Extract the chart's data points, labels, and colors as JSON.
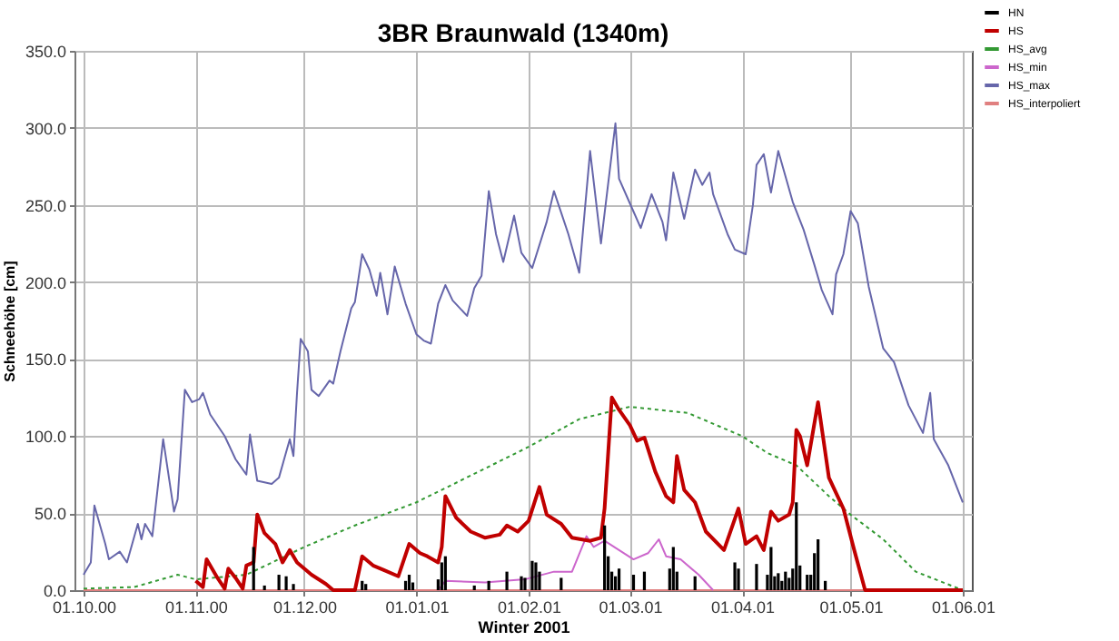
{
  "chart_data": {
    "type": "line",
    "title": "3BR Braunwald (1340m)",
    "xlabel": "Winter 2001",
    "ylabel": "Schneehöhe [cm]",
    "xlim": [
      "2000-10-01",
      "2001-06-01"
    ],
    "xticks": [
      {
        "value": "2000-10-01",
        "label": "01.10.00"
      },
      {
        "value": "2000-11-01",
        "label": "01.11.00"
      },
      {
        "value": "2000-12-01",
        "label": "01.12.00"
      },
      {
        "value": "2001-01-01",
        "label": "01.01.01"
      },
      {
        "value": "2001-02-01",
        "label": "01.02.01"
      },
      {
        "value": "2001-03-01",
        "label": "01.03.01"
      },
      {
        "value": "2001-04-01",
        "label": "01.04.01"
      },
      {
        "value": "2001-05-01",
        "label": "01.05.01"
      },
      {
        "value": "2001-06-01",
        "label": "01.06.01"
      }
    ],
    "ylim": [
      0,
      350
    ],
    "yticks": [
      {
        "value": 0,
        "label": "0.0"
      },
      {
        "value": 50,
        "label": "50.0"
      },
      {
        "value": 100,
        "label": "100.0"
      },
      {
        "value": 150,
        "label": "150.0"
      },
      {
        "value": 200,
        "label": "200.0"
      },
      {
        "value": 250,
        "label": "250.0"
      },
      {
        "value": 300,
        "label": "300.0"
      },
      {
        "value": 350,
        "label": "350.0"
      }
    ],
    "grid": true,
    "legend": "top right",
    "series": [
      {
        "name": "HN",
        "type": "bar",
        "color": "#000000",
        "x": [
          "2000-11-17",
          "2000-11-20",
          "2000-11-24",
          "2000-11-26",
          "2000-11-28",
          "2000-12-17",
          "2000-12-18",
          "2000-12-29",
          "2000-12-30",
          "2000-12-31",
          "2001-01-07",
          "2001-01-08",
          "2001-01-09",
          "2001-01-17",
          "2001-01-21",
          "2001-01-26",
          "2001-01-30",
          "2001-01-31",
          "2001-02-02",
          "2001-02-03",
          "2001-02-04",
          "2001-02-10",
          "2001-02-22",
          "2001-02-23",
          "2001-02-24",
          "2001-02-25",
          "2001-02-26",
          "2001-03-02",
          "2001-03-05",
          "2001-03-12",
          "2001-03-13",
          "2001-03-14",
          "2001-03-19",
          "2001-03-30",
          "2001-03-31",
          "2001-04-05",
          "2001-04-08",
          "2001-04-09",
          "2001-04-10",
          "2001-04-11",
          "2001-04-12",
          "2001-04-13",
          "2001-04-14",
          "2001-04-15",
          "2001-04-16",
          "2001-04-17",
          "2001-04-19",
          "2001-04-20",
          "2001-04-21",
          "2001-04-22",
          "2001-04-24"
        ],
        "values": [
          28,
          3,
          10,
          9,
          4,
          6,
          4,
          6,
          10,
          5,
          7,
          18,
          22,
          3,
          6,
          12,
          9,
          8,
          19,
          18,
          12,
          8,
          42,
          22,
          12,
          9,
          14,
          10,
          12,
          14,
          28,
          12,
          9,
          18,
          14,
          17,
          10,
          28,
          9,
          11,
          6,
          12,
          8,
          14,
          57,
          16,
          10,
          10,
          24,
          33,
          6
        ]
      },
      {
        "name": "HS",
        "color": "#c00000",
        "x": [
          "2000-11-01",
          "2000-11-03",
          "2000-11-04",
          "2000-11-07",
          "2000-11-09",
          "2000-11-10",
          "2000-11-12",
          "2000-11-14",
          "2000-11-15",
          "2000-11-17",
          "2000-11-18",
          "2000-11-20",
          "2000-11-23",
          "2000-11-25",
          "2000-11-27",
          "2000-11-29",
          "2000-12-03",
          "2000-12-07",
          "2000-12-09",
          "2000-12-15",
          "2000-12-17",
          "2000-12-20",
          "2000-12-23",
          "2000-12-27",
          "2000-12-30",
          "2001-01-02",
          "2001-01-04",
          "2001-01-07",
          "2001-01-08",
          "2001-01-09",
          "2001-01-12",
          "2001-01-16",
          "2001-01-20",
          "2001-01-24",
          "2001-01-26",
          "2001-01-29",
          "2001-02-01",
          "2001-02-04",
          "2001-02-06",
          "2001-02-10",
          "2001-02-13",
          "2001-02-18",
          "2001-02-21",
          "2001-02-22",
          "2001-02-24",
          "2001-02-26",
          "2001-03-01",
          "2001-03-03",
          "2001-03-05",
          "2001-03-08",
          "2001-03-11",
          "2001-03-13",
          "2001-03-14",
          "2001-03-16",
          "2001-03-19",
          "2001-03-22",
          "2001-03-27",
          "2001-03-31",
          "2001-04-02",
          "2001-04-05",
          "2001-04-07",
          "2001-04-09",
          "2001-04-11",
          "2001-04-14",
          "2001-04-15",
          "2001-04-16",
          "2001-04-17",
          "2001-04-19",
          "2001-04-22",
          "2001-04-25",
          "2001-04-29",
          "2001-05-02",
          "2001-05-05",
          "2001-06-01"
        ],
        "values": [
          6,
          2,
          20,
          8,
          1,
          14,
          8,
          1,
          16,
          18,
          49,
          37,
          30,
          18,
          26,
          18,
          10,
          4,
          0,
          0,
          22,
          16,
          13,
          9,
          30,
          24,
          22,
          18,
          28,
          61,
          47,
          38,
          34,
          36,
          42,
          38,
          45,
          67,
          49,
          43,
          34,
          32,
          34,
          53,
          125,
          117,
          107,
          97,
          99,
          77,
          61,
          57,
          87,
          65,
          57,
          38,
          26,
          53,
          30,
          35,
          26,
          51,
          45,
          49,
          57,
          104,
          100,
          81,
          122,
          73,
          53,
          26,
          0,
          0
        ]
      },
      {
        "name": "HS_avg",
        "color": "#339933",
        "line_style": "dotted",
        "x": [
          "2000-10-01",
          "2000-10-15",
          "2000-10-27",
          "2000-11-01",
          "2000-11-15",
          "2000-12-01",
          "2000-12-15",
          "2001-01-01",
          "2001-01-20",
          "2001-02-01",
          "2001-02-15",
          "2001-03-01",
          "2001-03-17",
          "2001-04-01",
          "2001-04-08",
          "2001-04-16",
          "2001-04-25",
          "2001-05-01",
          "2001-05-10",
          "2001-05-19",
          "2001-06-01"
        ],
        "values": [
          1,
          2,
          10,
          7,
          10,
          28,
          42,
          57,
          79,
          93,
          111,
          119,
          115,
          100,
          89,
          81,
          61,
          49,
          33,
          12,
          0
        ]
      },
      {
        "name": "HS_min",
        "color": "#cc66cc",
        "x": [
          "2001-01-07",
          "2001-01-09",
          "2001-01-20",
          "2001-01-31",
          "2001-02-08",
          "2001-02-13",
          "2001-02-17",
          "2001-02-19",
          "2001-02-22",
          "2001-02-26",
          "2001-03-02",
          "2001-03-06",
          "2001-03-09",
          "2001-03-11",
          "2001-03-15",
          "2001-03-20",
          "2001-03-24"
        ],
        "values": [
          0,
          6,
          5,
          7,
          12,
          12,
          35,
          28,
          32,
          26,
          20,
          24,
          33,
          22,
          20,
          10,
          0
        ]
      },
      {
        "name": "HS_max",
        "color": "#6666aa",
        "x": [
          "2000-10-01",
          "2000-10-03",
          "2000-10-04",
          "2000-10-07",
          "2000-10-08",
          "2000-10-11",
          "2000-10-13",
          "2000-10-16",
          "2000-10-17",
          "2000-10-18",
          "2000-10-20",
          "2000-10-23",
          "2000-10-26",
          "2000-10-27",
          "2000-10-29",
          "2000-10-31",
          "2000-11-02",
          "2000-11-03",
          "2000-11-05",
          "2000-11-09",
          "2000-11-12",
          "2000-11-15",
          "2000-11-16",
          "2000-11-18",
          "2000-11-22",
          "2000-11-24",
          "2000-11-27",
          "2000-11-28",
          "2000-11-29",
          "2000-11-30",
          "2000-12-02",
          "2000-12-03",
          "2000-12-05",
          "2000-12-08",
          "2000-12-09",
          "2000-12-11",
          "2000-12-14",
          "2000-12-15",
          "2000-12-17",
          "2000-12-19",
          "2000-12-21",
          "2000-12-22",
          "2000-12-24",
          "2000-12-26",
          "2000-12-29",
          "2001-01-01",
          "2001-01-03",
          "2001-01-05",
          "2001-01-07",
          "2001-01-09",
          "2001-01-11",
          "2001-01-15",
          "2001-01-17",
          "2001-01-19",
          "2001-01-21",
          "2001-01-23",
          "2001-01-25",
          "2001-01-28",
          "2001-01-30",
          "2001-02-02",
          "2001-02-06",
          "2001-02-08",
          "2001-02-12",
          "2001-02-15",
          "2001-02-18",
          "2001-02-21",
          "2001-02-25",
          "2001-02-26",
          "2001-03-01",
          "2001-03-04",
          "2001-03-07",
          "2001-03-10",
          "2001-03-11",
          "2001-03-13",
          "2001-03-16",
          "2001-03-19",
          "2001-03-21",
          "2001-03-23",
          "2001-03-24",
          "2001-03-28",
          "2001-03-30",
          "2001-04-02",
          "2001-04-04",
          "2001-04-05",
          "2001-04-07",
          "2001-04-09",
          "2001-04-11",
          "2001-04-15",
          "2001-04-18",
          "2001-04-21",
          "2001-04-23",
          "2001-04-26",
          "2001-04-27",
          "2001-04-29",
          "2001-05-01",
          "2001-05-03",
          "2001-05-06",
          "2001-05-10",
          "2001-05-13",
          "2001-05-17",
          "2001-05-21",
          "2001-05-23",
          "2001-05-24",
          "2001-05-28",
          "2001-06-01"
        ],
        "values": [
          10,
          18,
          55,
          30,
          20,
          25,
          18,
          43,
          33,
          43,
          35,
          98,
          51,
          59,
          130,
          122,
          124,
          128,
          114,
          100,
          85,
          75,
          101,
          71,
          69,
          73,
          98,
          87,
          128,
          163,
          155,
          130,
          126,
          136,
          134,
          155,
          183,
          187,
          218,
          208,
          191,
          206,
          179,
          210,
          186,
          166,
          162,
          160,
          186,
          198,
          188,
          178,
          196,
          204,
          259,
          231,
          213,
          243,
          219,
          209,
          239,
          259,
          231,
          206,
          285,
          225,
          303,
          267,
          251,
          235,
          257,
          239,
          227,
          271,
          241,
          273,
          263,
          271,
          257,
          231,
          221,
          218,
          250,
          276,
          283,
          258,
          285,
          252,
          234,
          211,
          195,
          179,
          205,
          218,
          246,
          238,
          197,
          157,
          148,
          120,
          102,
          128,
          98,
          81,
          57
        ]
      },
      {
        "name": "HS_interpoliert",
        "color": "#e08080",
        "x": [
          "2000-10-01",
          "2001-06-01"
        ],
        "values": [
          0,
          0
        ]
      }
    ]
  }
}
